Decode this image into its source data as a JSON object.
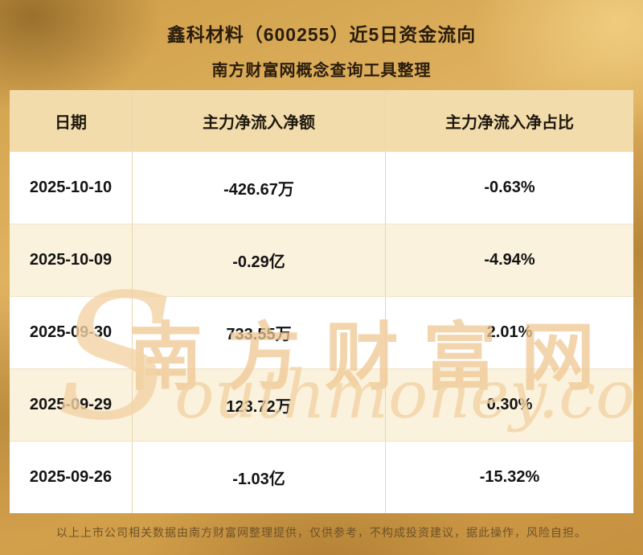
{
  "chart_data": {
    "type": "table",
    "title": "鑫科材料（600255）近5日资金流向",
    "subtitle": "南方财富网概念查询工具整理",
    "columns": [
      "日期",
      "主力净流入净额",
      "主力净流入净占比"
    ],
    "rows": [
      [
        "2025-10-10",
        "-426.67万",
        "-0.63%"
      ],
      [
        "2025-10-09",
        "-0.29亿",
        "-4.94%"
      ],
      [
        "2025-09-30",
        "733.55万",
        "2.01%"
      ],
      [
        "2025-09-29",
        "123.72万",
        "0.30%"
      ],
      [
        "2025-09-26",
        "-1.03亿",
        "-15.32%"
      ]
    ]
  },
  "watermark": {
    "cn": "南方财富网",
    "en": "Southmoney.com"
  },
  "footer": "以上上市公司相关数据由南方财富网整理提供，仅供参考，不构成投资建议，据此操作，风险自担。",
  "colors": {
    "background_gold": "#d6a44f",
    "header_bg": "#f3dcab",
    "row_bg": "#ffffff",
    "row_alt_bg": "#fbf2dd",
    "title_text": "#2a1c0d",
    "watermark": "#efc892",
    "footer_text": "#6e5227"
  }
}
